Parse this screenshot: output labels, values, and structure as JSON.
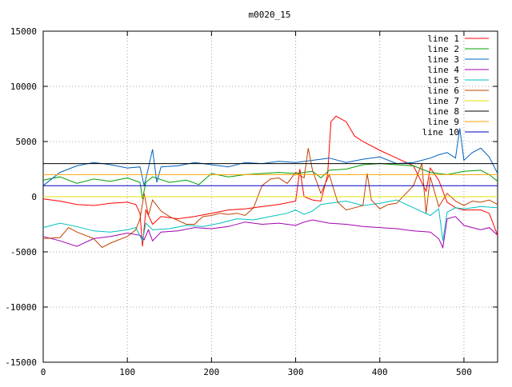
{
  "chart_data": {
    "type": "line",
    "title": "m0020_15",
    "xlabel": "",
    "ylabel": "",
    "xlim": [
      0,
      540
    ],
    "ylim": [
      -15000,
      15000
    ],
    "xticks": [
      0,
      100,
      200,
      300,
      400,
      500
    ],
    "yticks": [
      -15000,
      -10000,
      -5000,
      0,
      5000,
      10000,
      15000
    ],
    "grid": true,
    "legend_position": "top-right",
    "series": [
      {
        "name": "line 1",
        "color": "#ff0000",
        "points": [
          [
            0,
            -200
          ],
          [
            20,
            -400
          ],
          [
            40,
            -700
          ],
          [
            60,
            -800
          ],
          [
            80,
            -600
          ],
          [
            100,
            -500
          ],
          [
            110,
            -700
          ],
          [
            115,
            -1500
          ],
          [
            118,
            -4500
          ],
          [
            122,
            -1200
          ],
          [
            130,
            -2500
          ],
          [
            140,
            -1800
          ],
          [
            160,
            -2000
          ],
          [
            180,
            -1800
          ],
          [
            200,
            -1500
          ],
          [
            220,
            -1200
          ],
          [
            240,
            -1100
          ],
          [
            260,
            -900
          ],
          [
            280,
            -700
          ],
          [
            300,
            -400
          ],
          [
            305,
            2500
          ],
          [
            310,
            0
          ],
          [
            320,
            -300
          ],
          [
            330,
            -400
          ],
          [
            338,
            2000
          ],
          [
            342,
            6800
          ],
          [
            348,
            7300
          ],
          [
            360,
            6800
          ],
          [
            370,
            5500
          ],
          [
            380,
            5000
          ],
          [
            400,
            4200
          ],
          [
            420,
            3500
          ],
          [
            440,
            2800
          ],
          [
            455,
            500
          ],
          [
            460,
            2600
          ],
          [
            470,
            1500
          ],
          [
            480,
            -500
          ],
          [
            490,
            -1000
          ],
          [
            500,
            -1200
          ],
          [
            510,
            -1200
          ],
          [
            520,
            -1200
          ],
          [
            530,
            -1500
          ],
          [
            540,
            -3500
          ]
        ]
      },
      {
        "name": "line 2",
        "color": "#00a000",
        "points": [
          [
            0,
            1500
          ],
          [
            20,
            1800
          ],
          [
            40,
            1200
          ],
          [
            60,
            1600
          ],
          [
            80,
            1400
          ],
          [
            100,
            1700
          ],
          [
            115,
            1300
          ],
          [
            118,
            -200
          ],
          [
            122,
            1300
          ],
          [
            130,
            1800
          ],
          [
            150,
            1300
          ],
          [
            170,
            1500
          ],
          [
            185,
            1100
          ],
          [
            200,
            2100
          ],
          [
            220,
            1800
          ],
          [
            240,
            2000
          ],
          [
            260,
            2100
          ],
          [
            280,
            2200
          ],
          [
            300,
            2100
          ],
          [
            320,
            2300
          ],
          [
            330,
            1700
          ],
          [
            340,
            2400
          ],
          [
            360,
            2500
          ],
          [
            380,
            2900
          ],
          [
            400,
            3000
          ],
          [
            420,
            2900
          ],
          [
            440,
            2800
          ],
          [
            460,
            2200
          ],
          [
            480,
            2000
          ],
          [
            500,
            2300
          ],
          [
            520,
            2400
          ],
          [
            530,
            2000
          ],
          [
            540,
            1400
          ]
        ]
      },
      {
        "name": "line 3",
        "color": "#0060c0",
        "points": [
          [
            0,
            1000
          ],
          [
            20,
            2200
          ],
          [
            40,
            2800
          ],
          [
            60,
            3100
          ],
          [
            80,
            2900
          ],
          [
            100,
            2600
          ],
          [
            115,
            2700
          ],
          [
            120,
            1000
          ],
          [
            125,
            2600
          ],
          [
            130,
            4300
          ],
          [
            135,
            1300
          ],
          [
            140,
            2700
          ],
          [
            160,
            2800
          ],
          [
            180,
            3100
          ],
          [
            200,
            2900
          ],
          [
            220,
            2700
          ],
          [
            240,
            3100
          ],
          [
            260,
            3000
          ],
          [
            280,
            3200
          ],
          [
            300,
            3100
          ],
          [
            320,
            3300
          ],
          [
            340,
            3500
          ],
          [
            360,
            3100
          ],
          [
            380,
            3400
          ],
          [
            400,
            3600
          ],
          [
            420,
            3000
          ],
          [
            440,
            3100
          ],
          [
            460,
            3500
          ],
          [
            470,
            3800
          ],
          [
            480,
            4000
          ],
          [
            490,
            3500
          ],
          [
            495,
            6200
          ],
          [
            500,
            3300
          ],
          [
            510,
            4000
          ],
          [
            520,
            4400
          ],
          [
            530,
            3600
          ],
          [
            540,
            2100
          ]
        ]
      },
      {
        "name": "line 4",
        "color": "#a000b0",
        "points": [
          [
            0,
            -3600
          ],
          [
            20,
            -4000
          ],
          [
            40,
            -4500
          ],
          [
            60,
            -3800
          ],
          [
            80,
            -3600
          ],
          [
            100,
            -3300
          ],
          [
            115,
            -3500
          ],
          [
            120,
            -3900
          ],
          [
            125,
            -3000
          ],
          [
            130,
            -4000
          ],
          [
            140,
            -3200
          ],
          [
            160,
            -3100
          ],
          [
            180,
            -2800
          ],
          [
            200,
            -2900
          ],
          [
            220,
            -2700
          ],
          [
            240,
            -2300
          ],
          [
            260,
            -2500
          ],
          [
            280,
            -2400
          ],
          [
            300,
            -2600
          ],
          [
            310,
            -2300
          ],
          [
            320,
            -2100
          ],
          [
            340,
            -2400
          ],
          [
            360,
            -2500
          ],
          [
            380,
            -2700
          ],
          [
            400,
            -2800
          ],
          [
            420,
            -2900
          ],
          [
            440,
            -3100
          ],
          [
            460,
            -3200
          ],
          [
            470,
            -3800
          ],
          [
            475,
            -4600
          ],
          [
            480,
            -2000
          ],
          [
            490,
            -1800
          ],
          [
            500,
            -2600
          ],
          [
            520,
            -3000
          ],
          [
            530,
            -2800
          ],
          [
            540,
            -3500
          ]
        ]
      },
      {
        "name": "line 5",
        "color": "#00c0c0",
        "points": [
          [
            0,
            -2800
          ],
          [
            20,
            -2400
          ],
          [
            40,
            -2700
          ],
          [
            60,
            -3100
          ],
          [
            80,
            -3200
          ],
          [
            100,
            -3000
          ],
          [
            110,
            -2800
          ],
          [
            118,
            -4000
          ],
          [
            122,
            -2400
          ],
          [
            130,
            -3000
          ],
          [
            150,
            -2900
          ],
          [
            170,
            -2600
          ],
          [
            190,
            -2700
          ],
          [
            210,
            -2400
          ],
          [
            230,
            -2000
          ],
          [
            250,
            -2100
          ],
          [
            270,
            -1800
          ],
          [
            290,
            -1500
          ],
          [
            300,
            -1200
          ],
          [
            310,
            -1600
          ],
          [
            320,
            -1300
          ],
          [
            330,
            -700
          ],
          [
            340,
            -600
          ],
          [
            360,
            -400
          ],
          [
            380,
            -800
          ],
          [
            400,
            -600
          ],
          [
            420,
            -300
          ],
          [
            440,
            -1000
          ],
          [
            460,
            -1700
          ],
          [
            470,
            -1100
          ],
          [
            475,
            -4000
          ],
          [
            480,
            -1400
          ],
          [
            490,
            -1000
          ],
          [
            500,
            -1100
          ],
          [
            520,
            -900
          ],
          [
            540,
            -1000
          ]
        ]
      },
      {
        "name": "line 6",
        "color": "#c04000",
        "points": [
          [
            0,
            -3800
          ],
          [
            20,
            -3700
          ],
          [
            30,
            -2800
          ],
          [
            40,
            -3200
          ],
          [
            60,
            -3800
          ],
          [
            70,
            -4600
          ],
          [
            80,
            -4200
          ],
          [
            100,
            -3600
          ],
          [
            110,
            -3000
          ],
          [
            115,
            -2000
          ],
          [
            120,
            300
          ],
          [
            125,
            -1700
          ],
          [
            130,
            -300
          ],
          [
            140,
            -1300
          ],
          [
            150,
            -1800
          ],
          [
            170,
            -2500
          ],
          [
            180,
            -2500
          ],
          [
            185,
            -2100
          ],
          [
            190,
            -1800
          ],
          [
            200,
            -1700
          ],
          [
            210,
            -1500
          ],
          [
            220,
            -1600
          ],
          [
            230,
            -1500
          ],
          [
            240,
            -1700
          ],
          [
            250,
            -1000
          ],
          [
            260,
            1000
          ],
          [
            270,
            1600
          ],
          [
            280,
            1700
          ],
          [
            290,
            1200
          ],
          [
            300,
            2200
          ],
          [
            310,
            1700
          ],
          [
            315,
            4400
          ],
          [
            320,
            2400
          ],
          [
            330,
            300
          ],
          [
            340,
            2000
          ],
          [
            350,
            -500
          ],
          [
            360,
            -1200
          ],
          [
            370,
            -1000
          ],
          [
            380,
            -800
          ],
          [
            385,
            2100
          ],
          [
            390,
            -300
          ],
          [
            400,
            -1100
          ],
          [
            410,
            -700
          ],
          [
            420,
            -600
          ],
          [
            430,
            200
          ],
          [
            440,
            1000
          ],
          [
            450,
            3000
          ],
          [
            455,
            -1500
          ],
          [
            460,
            1800
          ],
          [
            470,
            -900
          ],
          [
            480,
            300
          ],
          [
            490,
            -400
          ],
          [
            500,
            -800
          ],
          [
            510,
            -400
          ],
          [
            520,
            -500
          ],
          [
            530,
            -300
          ],
          [
            540,
            -700
          ]
        ]
      },
      {
        "name": "line 7",
        "color": "#e0e000",
        "points": [
          [
            0,
            0
          ],
          [
            540,
            0
          ]
        ]
      },
      {
        "name": "line 8",
        "color": "#000000",
        "points": [
          [
            0,
            3000
          ],
          [
            540,
            3000
          ]
        ]
      },
      {
        "name": "line 9",
        "color": "#ffa000",
        "points": [
          [
            0,
            2000
          ],
          [
            540,
            2000
          ]
        ]
      },
      {
        "name": "line 10",
        "color": "#0000c0",
        "points": [
          [
            0,
            1000
          ],
          [
            540,
            1000
          ]
        ]
      }
    ]
  }
}
